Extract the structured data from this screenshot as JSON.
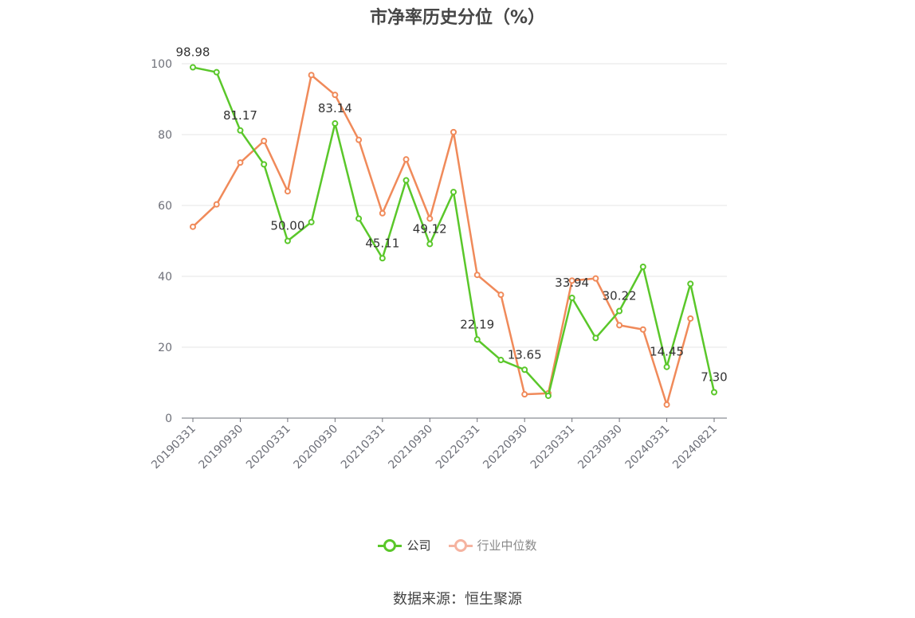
{
  "title": "市净率历史分位（%）",
  "source": "数据来源：恒生聚源",
  "colors": {
    "company": "#5ac72a",
    "industry": "#f08a5a",
    "industry_legend": "#f5b3a0",
    "grid": "#e6e6e6",
    "axis": "#6e7079"
  },
  "chart_data": {
    "type": "line",
    "title": "市净率历史分位（%）",
    "ylim": [
      0,
      100
    ],
    "y_ticks": [
      "0",
      "20",
      "40",
      "60",
      "80",
      "100"
    ],
    "x_tick_labels": [
      "20190331",
      "20190930",
      "20200331",
      "20200930",
      "20210331",
      "20210930",
      "20220331",
      "20220930",
      "20230331",
      "20230930",
      "20240331",
      "20240821"
    ],
    "x": [
      "20190331",
      "20190630",
      "20190930",
      "20191231",
      "20200331",
      "20200630",
      "20200930",
      "20201231",
      "20210331",
      "20210630",
      "20210930",
      "20211231",
      "20220331",
      "20220630",
      "20220930",
      "20221231",
      "20230331",
      "20230630",
      "20230930",
      "20231231",
      "20240331",
      "20240630",
      "20240821"
    ],
    "grid": true,
    "legend_position": "bottom",
    "series": [
      {
        "name": "公司",
        "values": [
          98.98,
          97.6,
          81.17,
          71.6,
          50.0,
          55.3,
          83.14,
          56.3,
          45.11,
          67.1,
          49.12,
          63.8,
          22.19,
          16.4,
          13.65,
          6.3,
          33.94,
          22.6,
          30.22,
          42.7,
          14.45,
          37.9,
          7.3
        ],
        "labels": [
          "98.98",
          "",
          "81.17",
          "",
          "50.00",
          "",
          "83.14",
          "",
          "45.11",
          "",
          "49.12",
          "",
          "22.19",
          "",
          "13.65",
          "",
          "33.94",
          "",
          "30.22",
          "",
          "14.45",
          "",
          "7.30"
        ]
      },
      {
        "name": "行业中位数",
        "values": [
          54.0,
          60.3,
          72.1,
          78.2,
          64.0,
          96.8,
          91.2,
          78.5,
          57.8,
          73.0,
          56.3,
          80.7,
          40.4,
          34.8,
          6.7,
          7.0,
          38.8,
          39.4,
          26.2,
          25.0,
          3.8,
          28.1,
          null
        ]
      }
    ]
  }
}
